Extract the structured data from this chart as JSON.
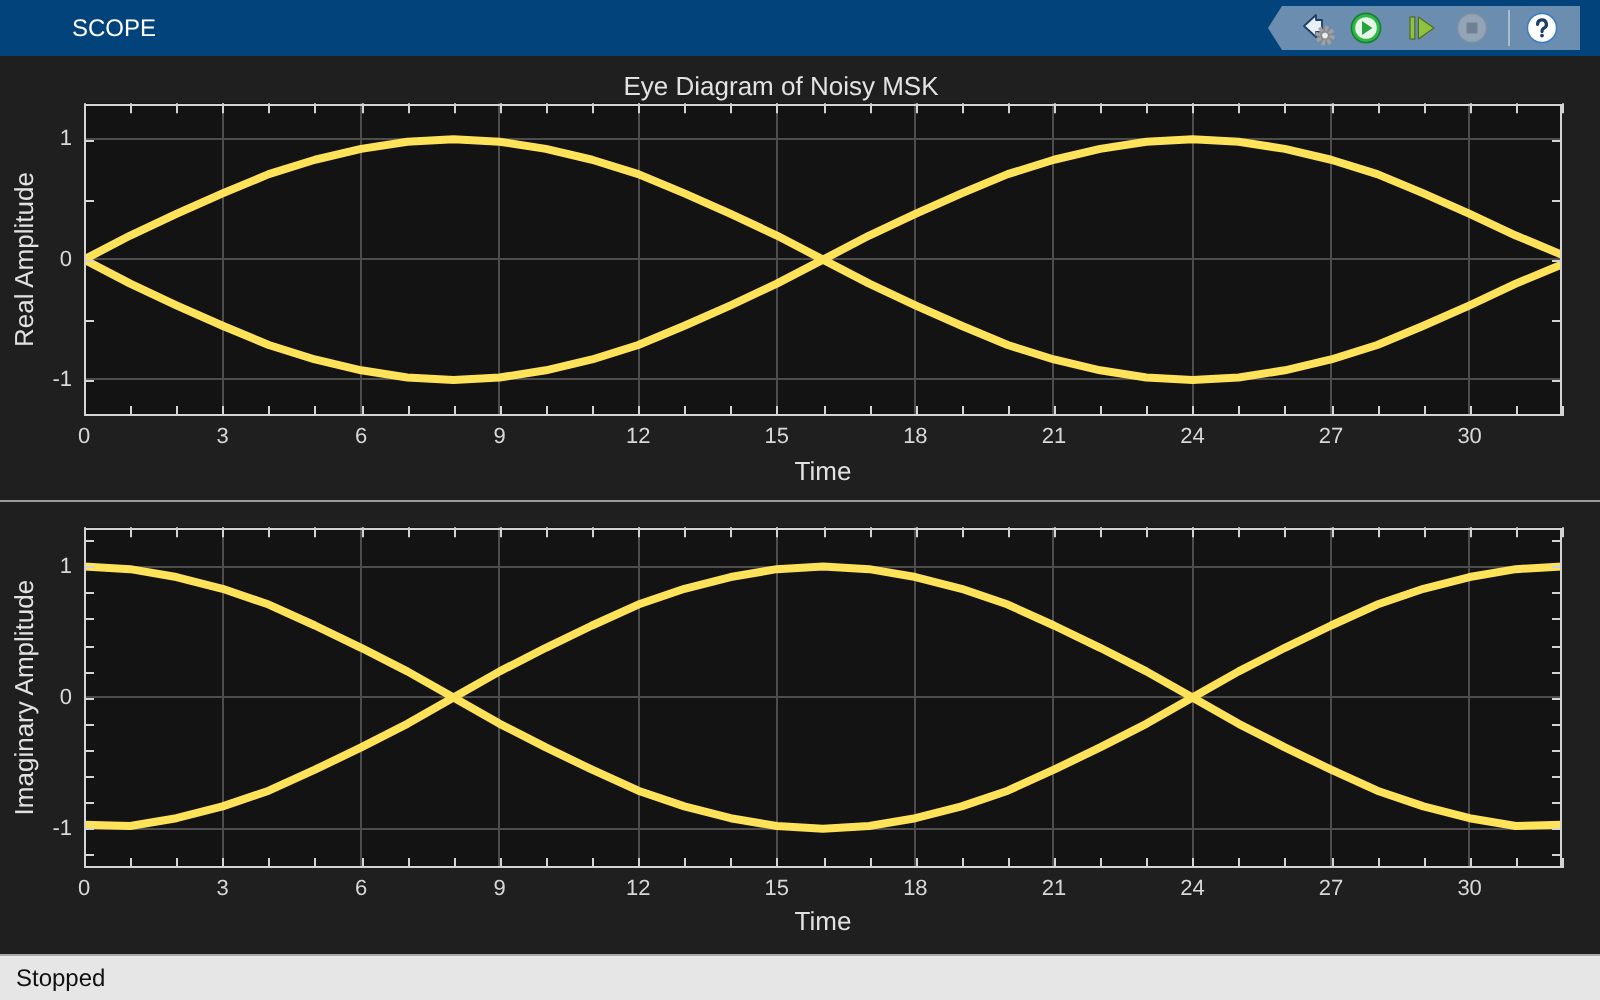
{
  "chart_data": [
    {
      "type": "line",
      "title": "Eye Diagram of Noisy MSK",
      "xlabel": "Time",
      "ylabel": "Real Amplitude",
      "x": [
        0,
        1,
        2,
        3,
        4,
        5,
        6,
        7,
        8,
        9,
        10,
        11,
        12,
        13,
        14,
        15,
        16,
        17,
        18,
        19,
        20,
        21,
        22,
        23,
        24,
        25,
        26,
        27,
        28,
        29,
        30,
        31,
        32
      ],
      "series": [
        {
          "color": "#fde25a",
          "values": [
            0,
            0.2,
            0.38,
            0.55,
            0.71,
            0.83,
            0.92,
            0.98,
            1,
            0.98,
            0.92,
            0.83,
            0.71,
            0.55,
            0.38,
            0.2,
            0,
            -0.2,
            -0.38,
            -0.55,
            -0.71,
            -0.83,
            -0.92,
            -0.98,
            -1,
            -0.98,
            -0.92,
            -0.83,
            -0.71,
            -0.55,
            -0.38,
            -0.2,
            -0.04
          ]
        },
        {
          "color": "#fde25a",
          "values": [
            0,
            -0.2,
            -0.38,
            -0.55,
            -0.71,
            -0.83,
            -0.92,
            -0.98,
            -1,
            -0.98,
            -0.92,
            -0.83,
            -0.71,
            -0.55,
            -0.38,
            -0.2,
            0,
            0.2,
            0.38,
            0.55,
            0.71,
            0.83,
            0.92,
            0.98,
            1,
            0.98,
            0.92,
            0.83,
            0.71,
            0.55,
            0.38,
            0.2,
            0.04
          ]
        }
      ],
      "xlim": [
        0,
        32
      ],
      "xticks": [
        0,
        {
          "value": 1,
          "label": null
        },
        {
          "value": 2,
          "label": null
        },
        3,
        {
          "value": 4,
          "label": null
        },
        {
          "value": 5,
          "label": null
        },
        6,
        {
          "value": 7,
          "label": null
        },
        {
          "value": 8,
          "label": null
        },
        9,
        {
          "value": 10,
          "label": null
        },
        {
          "value": 11,
          "label": null
        },
        12,
        {
          "value": 13,
          "label": null
        },
        {
          "value": 14,
          "label": null
        },
        15,
        {
          "value": 16,
          "label": null
        },
        {
          "value": 17,
          "label": null
        },
        18,
        {
          "value": 19,
          "label": null
        },
        {
          "value": 20,
          "label": null
        },
        21,
        {
          "value": 22,
          "label": null
        },
        {
          "value": 23,
          "label": null
        },
        24,
        {
          "value": 25,
          "label": null
        },
        {
          "value": 26,
          "label": null
        },
        27,
        {
          "value": 28,
          "label": null
        },
        {
          "value": 29,
          "label": null
        },
        30,
        {
          "value": 31,
          "label": null
        },
        {
          "value": 32,
          "label": null
        }
      ],
      "ylim": [
        -1.3,
        1.3
      ],
      "yticks": [
        -1,
        {
          "value": -0.5,
          "label": null
        },
        0,
        {
          "value": 0.5,
          "label": null
        },
        1
      ],
      "grid": true,
      "annotations": [
        "SCOPE"
      ]
    },
    {
      "type": "line",
      "xlabel": "Time",
      "ylabel": "Imaginary Amplitude",
      "x": [
        0,
        1,
        2,
        3,
        4,
        5,
        6,
        7,
        8,
        9,
        10,
        11,
        12,
        13,
        14,
        15,
        16,
        17,
        18,
        19,
        20,
        21,
        22,
        23,
        24,
        25,
        26,
        27,
        28,
        29,
        30,
        31,
        32
      ],
      "series": [
        {
          "color": "#fde25a",
          "values": [
            1,
            0.98,
            0.92,
            0.83,
            0.71,
            0.55,
            0.38,
            0.2,
            0,
            -0.2,
            -0.38,
            -0.55,
            -0.71,
            -0.83,
            -0.92,
            -0.98,
            -1,
            -0.98,
            -0.92,
            -0.83,
            -0.71,
            -0.55,
            -0.38,
            -0.2,
            0,
            0.2,
            0.38,
            0.55,
            0.71,
            0.83,
            0.92,
            0.98,
            1
          ]
        },
        {
          "color": "#fde25a",
          "values": [
            -0.97,
            -0.98,
            -0.92,
            -0.83,
            -0.71,
            -0.55,
            -0.38,
            -0.2,
            0,
            0.2,
            0.38,
            0.55,
            0.71,
            0.83,
            0.92,
            0.98,
            1,
            0.98,
            0.92,
            0.83,
            0.71,
            0.55,
            0.38,
            0.2,
            0,
            -0.2,
            -0.38,
            -0.55,
            -0.71,
            -0.83,
            -0.92,
            -0.98,
            -0.97
          ]
        }
      ],
      "xlim": [
        0,
        32
      ],
      "xticks": [
        0,
        {
          "value": 1,
          "label": null
        },
        {
          "value": 2,
          "label": null
        },
        3,
        {
          "value": 4,
          "label": null
        },
        {
          "value": 5,
          "label": null
        },
        6,
        {
          "value": 7,
          "label": null
        },
        {
          "value": 8,
          "label": null
        },
        9,
        {
          "value": 10,
          "label": null
        },
        {
          "value": 11,
          "label": null
        },
        12,
        {
          "value": 13,
          "label": null
        },
        {
          "value": 14,
          "label": null
        },
        15,
        {
          "value": 16,
          "label": null
        },
        {
          "value": 17,
          "label": null
        },
        18,
        {
          "value": 19,
          "label": null
        },
        {
          "value": 20,
          "label": null
        },
        21,
        {
          "value": 22,
          "label": null
        },
        {
          "value": 23,
          "label": null
        },
        24,
        {
          "value": 25,
          "label": null
        },
        {
          "value": 26,
          "label": null
        },
        27,
        {
          "value": 28,
          "label": null
        },
        {
          "value": 29,
          "label": null
        },
        30,
        {
          "value": 31,
          "label": null
        },
        {
          "value": 32,
          "label": null
        }
      ],
      "ylim": [
        -1.3,
        1.3
      ],
      "yticks": [
        {
          "value": -1.2,
          "label": null
        },
        -1,
        {
          "value": -0.8,
          "label": null
        },
        {
          "value": -0.6,
          "label": null
        },
        {
          "value": -0.4,
          "label": null
        },
        {
          "value": -0.2,
          "label": null
        },
        0,
        {
          "value": 0.2,
          "label": null
        },
        {
          "value": 0.4,
          "label": null
        },
        {
          "value": 0.6,
          "label": null
        },
        {
          "value": 0.8,
          "label": null
        },
        1,
        {
          "value": 1.2,
          "label": null
        }
      ],
      "grid": true,
      "annotations": [
        "Stopped"
      ]
    }
  ]
}
